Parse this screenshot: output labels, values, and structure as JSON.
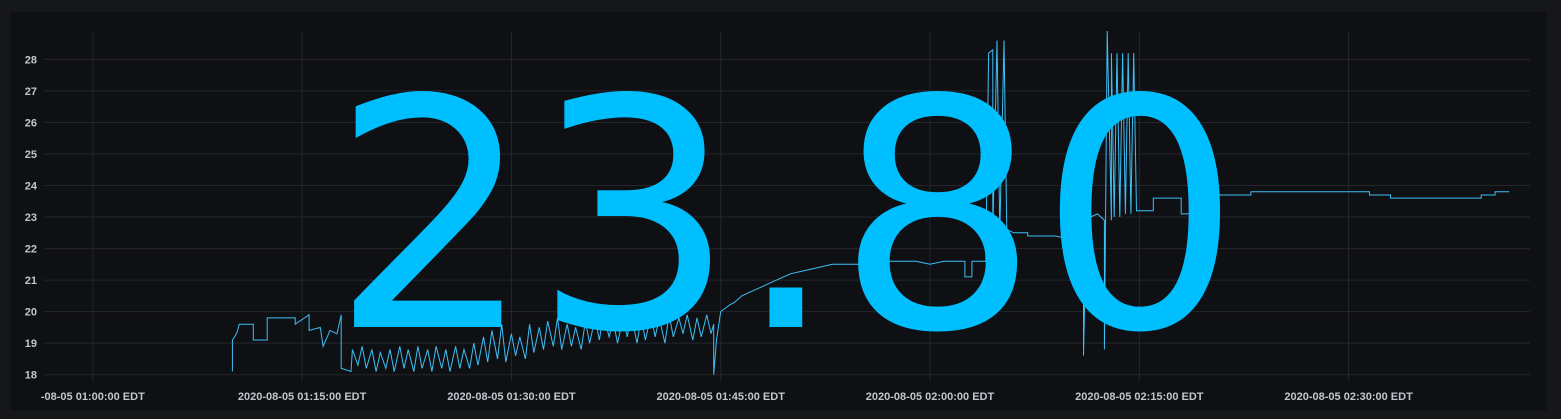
{
  "single_stat": {
    "value": "23.80",
    "color": "#00bfff"
  },
  "chart_data": {
    "type": "line",
    "title": "",
    "xlabel": "",
    "ylabel": "",
    "series_color": "#3cbff5",
    "grid": true,
    "ylim": [
      17.8,
      28.9
    ],
    "y_ticks": [
      "18",
      "19",
      "20",
      "21",
      "22",
      "23",
      "24",
      "25",
      "26",
      "27",
      "28"
    ],
    "x_range_minutes": [
      -3.5,
      103
    ],
    "x_ticks": [
      {
        "label": "-08-05 01:00:00 EDT",
        "min": 0
      },
      {
        "label": "2020-08-05 01:15:00 EDT",
        "min": 15
      },
      {
        "label": "2020-08-05 01:30:00 EDT",
        "min": 30
      },
      {
        "label": "2020-08-05 01:45:00 EDT",
        "min": 45
      },
      {
        "label": "2020-08-05 02:00:00 EDT",
        "min": 60
      },
      {
        "label": "2020-08-05 02:15:00 EDT",
        "min": 75
      },
      {
        "label": "2020-08-05 02:30:00 EDT",
        "min": 90
      }
    ],
    "series": [
      {
        "values": [
          [
            10.0,
            18.1
          ],
          [
            10.0,
            19.1
          ],
          [
            10.3,
            19.3
          ],
          [
            10.5,
            19.6
          ],
          [
            11.5,
            19.6
          ],
          [
            11.5,
            19.1
          ],
          [
            12.5,
            19.1
          ],
          [
            12.5,
            19.8
          ],
          [
            14.5,
            19.8
          ],
          [
            14.5,
            19.6
          ],
          [
            15.5,
            19.9
          ],
          [
            15.5,
            19.4
          ],
          [
            16.3,
            19.5
          ],
          [
            16.5,
            18.9
          ],
          [
            17.0,
            19.4
          ],
          [
            17.5,
            19.3
          ],
          [
            17.8,
            19.9
          ],
          [
            17.8,
            18.2
          ],
          [
            18.5,
            18.1
          ],
          [
            18.6,
            18.8
          ],
          [
            19.0,
            18.3
          ],
          [
            19.3,
            18.9
          ],
          [
            19.6,
            18.2
          ],
          [
            20.0,
            18.8
          ],
          [
            20.3,
            18.1
          ],
          [
            20.6,
            18.7
          ],
          [
            21.0,
            18.2
          ],
          [
            21.3,
            18.8
          ],
          [
            21.6,
            18.1
          ],
          [
            22.0,
            18.9
          ],
          [
            22.3,
            18.2
          ],
          [
            22.6,
            18.8
          ],
          [
            23.0,
            18.1
          ],
          [
            23.3,
            18.9
          ],
          [
            23.6,
            18.2
          ],
          [
            24.0,
            18.8
          ],
          [
            24.3,
            18.1
          ],
          [
            24.6,
            18.9
          ],
          [
            25.0,
            18.2
          ],
          [
            25.3,
            18.8
          ],
          [
            25.6,
            18.1
          ],
          [
            26.0,
            18.9
          ],
          [
            26.3,
            18.2
          ],
          [
            26.6,
            18.8
          ],
          [
            27.0,
            18.2
          ],
          [
            27.3,
            19.0
          ],
          [
            27.6,
            18.3
          ],
          [
            28.0,
            19.2
          ],
          [
            28.3,
            18.4
          ],
          [
            28.6,
            19.4
          ],
          [
            29.0,
            18.5
          ],
          [
            29.3,
            19.6
          ],
          [
            29.6,
            18.4
          ],
          [
            30.0,
            19.3
          ],
          [
            30.3,
            18.6
          ],
          [
            30.6,
            19.2
          ],
          [
            31.0,
            18.5
          ],
          [
            31.3,
            19.6
          ],
          [
            31.6,
            18.7
          ],
          [
            32.0,
            19.5
          ],
          [
            32.3,
            18.8
          ],
          [
            32.6,
            19.7
          ],
          [
            33.0,
            18.9
          ],
          [
            33.3,
            19.8
          ],
          [
            33.6,
            18.8
          ],
          [
            34.0,
            19.6
          ],
          [
            34.3,
            18.9
          ],
          [
            34.6,
            19.5
          ],
          [
            35.0,
            18.8
          ],
          [
            35.3,
            19.7
          ],
          [
            35.6,
            19.0
          ],
          [
            36.0,
            19.8
          ],
          [
            36.3,
            19.1
          ],
          [
            36.6,
            19.9
          ],
          [
            37.0,
            19.2
          ],
          [
            37.3,
            19.7
          ],
          [
            37.6,
            19.0
          ],
          [
            38.0,
            19.8
          ],
          [
            38.3,
            19.2
          ],
          [
            38.6,
            19.9
          ],
          [
            39.0,
            19.0
          ],
          [
            39.3,
            19.8
          ],
          [
            39.6,
            19.1
          ],
          [
            40.0,
            19.9
          ],
          [
            40.3,
            19.2
          ],
          [
            40.6,
            19.8
          ],
          [
            41.0,
            19.0
          ],
          [
            41.3,
            19.9
          ],
          [
            41.6,
            19.2
          ],
          [
            42.0,
            19.8
          ],
          [
            42.3,
            19.3
          ],
          [
            42.6,
            19.9
          ],
          [
            43.0,
            19.1
          ],
          [
            43.3,
            19.8
          ],
          [
            43.6,
            19.2
          ],
          [
            44.0,
            19.9
          ],
          [
            44.3,
            19.3
          ],
          [
            44.5,
            19.6
          ],
          [
            44.5,
            18.0
          ],
          [
            44.7,
            19.1
          ],
          [
            45.0,
            20.0
          ],
          [
            45.3,
            20.1
          ],
          [
            45.6,
            20.2
          ],
          [
            46.0,
            20.3
          ],
          [
            46.5,
            20.5
          ],
          [
            47.0,
            20.6
          ],
          [
            48.0,
            20.8
          ],
          [
            49.0,
            21.0
          ],
          [
            50.0,
            21.2
          ],
          [
            51.0,
            21.3
          ],
          [
            52.0,
            21.4
          ],
          [
            53.0,
            21.5
          ],
          [
            55.0,
            21.5
          ],
          [
            56.0,
            21.6
          ],
          [
            59.0,
            21.6
          ],
          [
            60.0,
            21.5
          ],
          [
            61.0,
            21.6
          ],
          [
            62.5,
            21.6
          ],
          [
            62.5,
            21.1
          ],
          [
            63.0,
            21.1
          ],
          [
            63.0,
            21.6
          ],
          [
            64.0,
            21.6
          ],
          [
            64.2,
            28.2
          ],
          [
            64.5,
            28.3
          ],
          [
            64.5,
            22.5
          ],
          [
            64.8,
            28.6
          ],
          [
            65.0,
            22.5
          ],
          [
            65.3,
            28.6
          ],
          [
            65.5,
            22.6
          ],
          [
            66.0,
            22.5
          ],
          [
            67.0,
            22.5
          ],
          [
            67.0,
            22.4
          ],
          [
            69.0,
            22.4
          ],
          [
            70.0,
            22.3
          ],
          [
            70.5,
            22.5
          ],
          [
            71.0,
            22.6
          ],
          [
            71.0,
            18.6
          ],
          [
            71.2,
            22.7
          ],
          [
            71.5,
            23.0
          ],
          [
            72.0,
            23.1
          ],
          [
            72.5,
            22.9
          ],
          [
            72.5,
            18.8
          ],
          [
            72.7,
            28.9
          ],
          [
            73.0,
            22.9
          ],
          [
            73.0,
            28.2
          ],
          [
            73.2,
            23.0
          ],
          [
            73.4,
            28.2
          ],
          [
            73.6,
            23.0
          ],
          [
            73.8,
            28.2
          ],
          [
            74.0,
            23.1
          ],
          [
            74.2,
            28.2
          ],
          [
            74.4,
            23.1
          ],
          [
            74.6,
            28.2
          ],
          [
            74.8,
            23.2
          ],
          [
            75.0,
            23.2
          ],
          [
            76.0,
            23.2
          ],
          [
            76.0,
            23.6
          ],
          [
            78.0,
            23.6
          ],
          [
            78.0,
            23.1
          ],
          [
            80.5,
            23.1
          ],
          [
            80.5,
            23.7
          ],
          [
            83.0,
            23.7
          ],
          [
            83.0,
            23.8
          ],
          [
            91.5,
            23.8
          ],
          [
            91.5,
            23.7
          ],
          [
            93.0,
            23.7
          ],
          [
            93.0,
            23.6
          ],
          [
            99.5,
            23.6
          ],
          [
            99.5,
            23.7
          ],
          [
            100.5,
            23.7
          ],
          [
            100.5,
            23.8
          ],
          [
            101.5,
            23.8
          ]
        ]
      }
    ]
  }
}
